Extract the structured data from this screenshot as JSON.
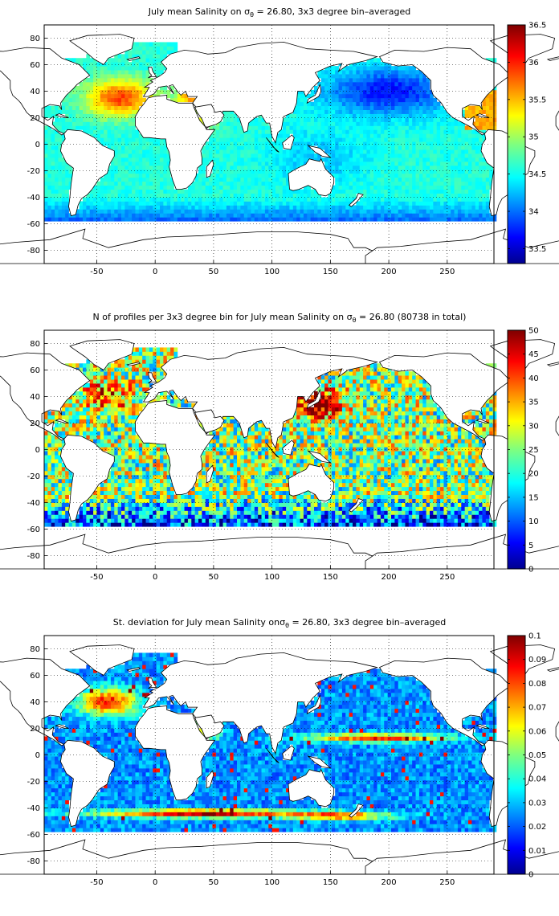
{
  "panels": [
    {
      "title_pre": "July mean Salinity on ",
      "title_sym": "σ",
      "title_sub": "θ",
      "title_post": " = 26.80, 3x3 degree bin–averaged",
      "cbar_ticks": [
        "33.5",
        "34",
        "34.5",
        "35",
        "35.5",
        "36",
        "36.5"
      ],
      "cbar_range": [
        33.3,
        36.5
      ],
      "field": "salinity"
    },
    {
      "title_pre": "N of profiles per 3x3 degree bin for July mean Salinity on ",
      "title_sym": "σ",
      "title_sub": "θ",
      "title_post": " = 26.80 (80738 in total)",
      "cbar_ticks": [
        "0",
        "5",
        "10",
        "15",
        "20",
        "25",
        "30",
        "35",
        "40",
        "45",
        "50"
      ],
      "cbar_range": [
        0,
        50
      ],
      "field": "count"
    },
    {
      "title_pre": "St. deviation for July mean Salinity on",
      "title_sym": "σ",
      "title_sub": "θ",
      "title_post": " = 26.80, 3x3 degree bin–averaged",
      "cbar_ticks": [
        "0",
        "0.01",
        "0.02",
        "0.03",
        "0.04",
        "0.05",
        "0.06",
        "0.07",
        "0.08",
        "0.09",
        "0.1"
      ],
      "cbar_range": [
        0,
        0.1
      ],
      "field": "stdev"
    }
  ],
  "x_ticks": [
    "-50",
    "0",
    "50",
    "100",
    "150",
    "200",
    "250"
  ],
  "y_ticks": [
    "80",
    "60",
    "40",
    "20",
    "0",
    "-20",
    "-40",
    "-60",
    "-80"
  ],
  "colormap": "jet",
  "grid": "dotted",
  "lon_range": [
    -95,
    290
  ],
  "lat_range": [
    -90,
    90
  ]
}
